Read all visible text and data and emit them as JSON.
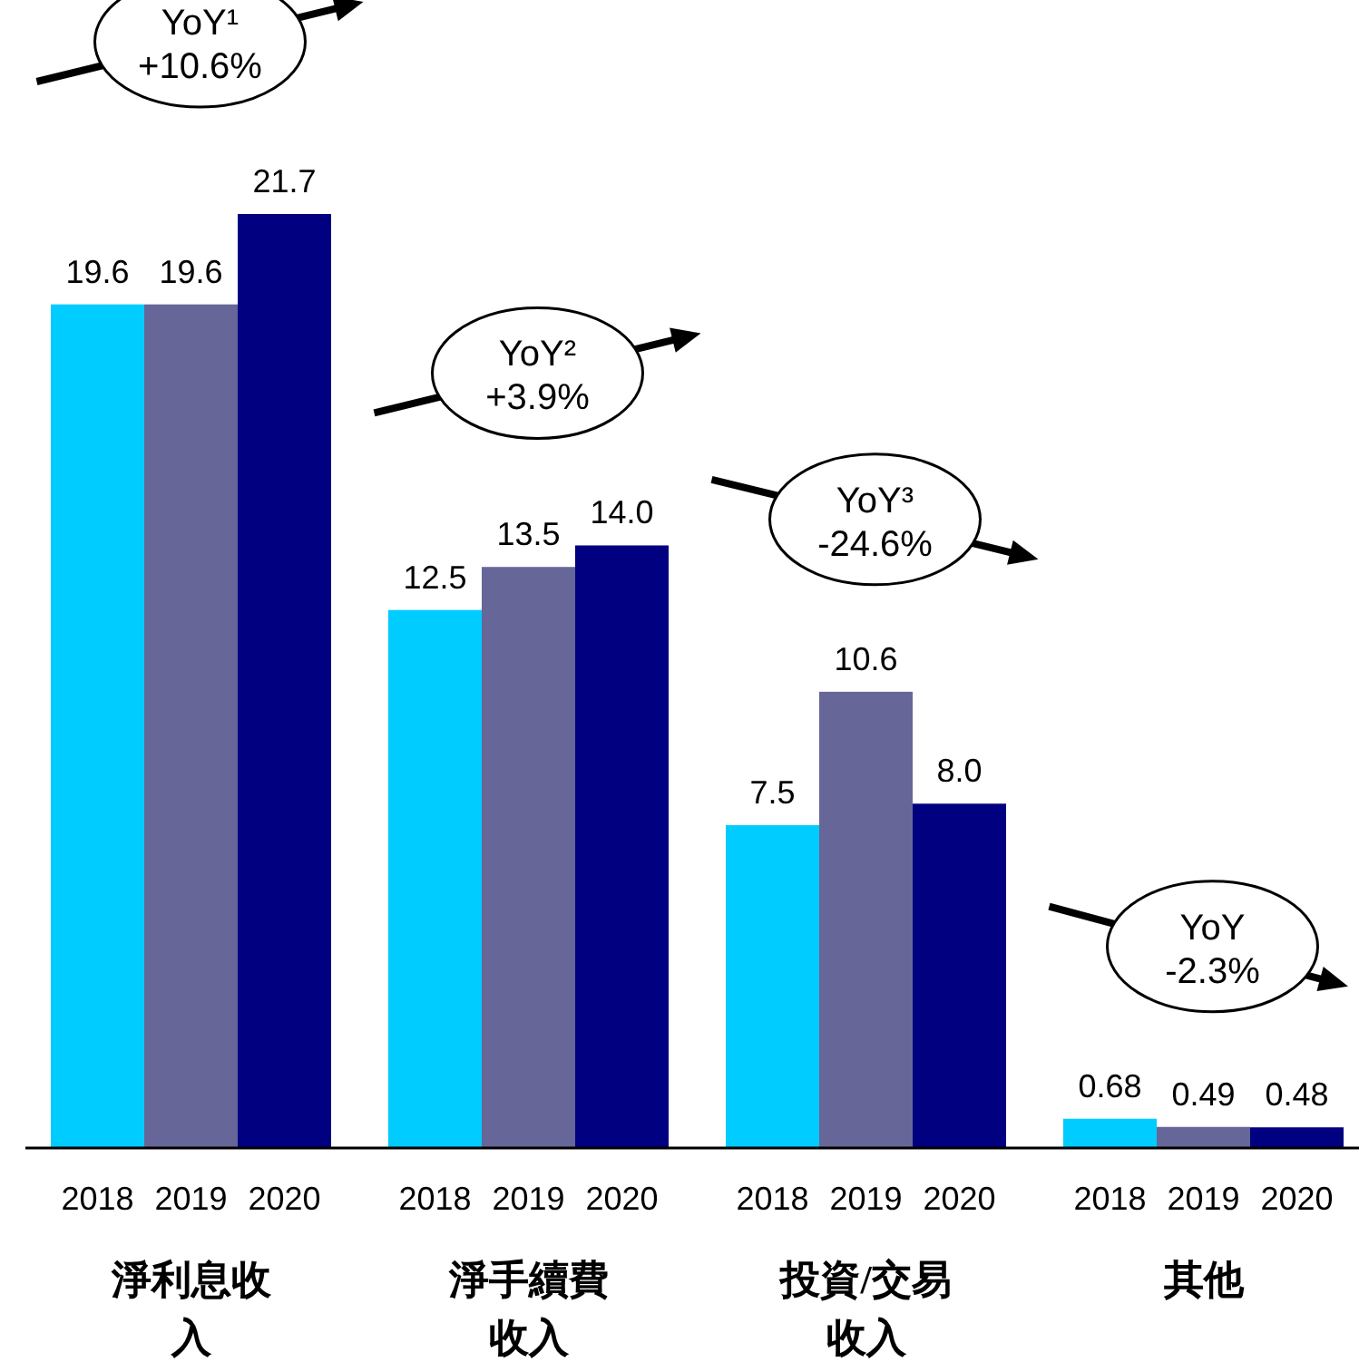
{
  "chart_data": {
    "type": "bar",
    "categories": [
      "淨利息收入",
      "淨手續費收入",
      "投資/交易收入",
      "其他"
    ],
    "series": [
      {
        "name": "2018",
        "color": "#00ccff",
        "values": [
          19.6,
          12.5,
          7.5,
          0.68
        ],
        "value_labels": [
          "19.6",
          "12.5",
          "7.5",
          "0.68"
        ]
      },
      {
        "name": "2019",
        "color": "#666699",
        "values": [
          19.6,
          13.5,
          10.6,
          0.49
        ],
        "value_labels": [
          "19.6",
          "13.5",
          "10.6",
          "0.49"
        ]
      },
      {
        "name": "2020",
        "color": "#000080",
        "values": [
          21.7,
          14.0,
          8.0,
          0.48
        ],
        "value_labels": [
          "21.7",
          "14.0",
          "8.0",
          "0.48"
        ]
      }
    ],
    "annotations": [
      "YoY¹\n+10.6%",
      "YoY²\n+3.9%",
      "YoY³\n-24.6%",
      "YoY\n-2.3%"
    ]
  }
}
